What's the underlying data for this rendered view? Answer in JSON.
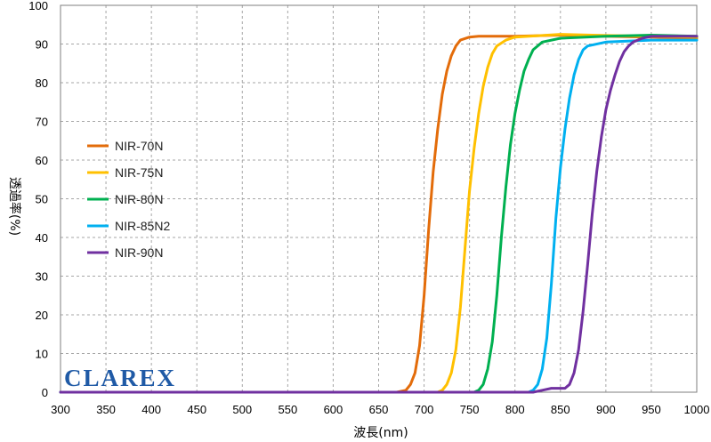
{
  "brand": {
    "logo_text": "CLAREX",
    "logo_color": "#1f5aa6"
  },
  "chart_data": {
    "type": "line",
    "title": "",
    "xlabel": "波長(nm)",
    "ylabel": "透過率(%)",
    "xlim": [
      300,
      1000
    ],
    "ylim": [
      0,
      100
    ],
    "x_ticks": [
      300,
      350,
      400,
      450,
      500,
      550,
      600,
      650,
      700,
      750,
      800,
      850,
      900,
      950,
      1000
    ],
    "y_ticks": [
      0,
      10,
      20,
      30,
      40,
      50,
      60,
      70,
      80,
      90,
      100
    ],
    "grid": true,
    "legend_position": "left-middle",
    "series": [
      {
        "name": "NIR-70N",
        "color": "#e36c0a",
        "points": [
          [
            300,
            0
          ],
          [
            670,
            0
          ],
          [
            680,
            0.5
          ],
          [
            685,
            2
          ],
          [
            690,
            5
          ],
          [
            695,
            12
          ],
          [
            700,
            25
          ],
          [
            705,
            42
          ],
          [
            710,
            57
          ],
          [
            715,
            68
          ],
          [
            720,
            77
          ],
          [
            725,
            83
          ],
          [
            730,
            87
          ],
          [
            735,
            89.5
          ],
          [
            740,
            91
          ],
          [
            750,
            91.8
          ],
          [
            760,
            92
          ],
          [
            800,
            92
          ],
          [
            850,
            92.3
          ],
          [
            900,
            92
          ],
          [
            950,
            91.8
          ],
          [
            1000,
            91.5
          ]
        ]
      },
      {
        "name": "NIR-75N",
        "color": "#ffc000",
        "points": [
          [
            300,
            0
          ],
          [
            715,
            0
          ],
          [
            720,
            0.5
          ],
          [
            725,
            2
          ],
          [
            730,
            5
          ],
          [
            735,
            11
          ],
          [
            740,
            22
          ],
          [
            745,
            37
          ],
          [
            750,
            52
          ],
          [
            755,
            63
          ],
          [
            760,
            72
          ],
          [
            765,
            79
          ],
          [
            770,
            84
          ],
          [
            775,
            87.5
          ],
          [
            780,
            89.5
          ],
          [
            790,
            91
          ],
          [
            800,
            91.8
          ],
          [
            850,
            92.5
          ],
          [
            900,
            92.2
          ],
          [
            950,
            92
          ],
          [
            1000,
            91.8
          ]
        ]
      },
      {
        "name": "NIR-80N",
        "color": "#00b050",
        "points": [
          [
            300,
            0
          ],
          [
            755,
            0
          ],
          [
            760,
            0.5
          ],
          [
            765,
            2
          ],
          [
            770,
            6
          ],
          [
            775,
            13
          ],
          [
            780,
            25
          ],
          [
            785,
            40
          ],
          [
            790,
            53
          ],
          [
            795,
            64
          ],
          [
            800,
            72
          ],
          [
            805,
            78
          ],
          [
            810,
            83
          ],
          [
            815,
            86
          ],
          [
            820,
            88.5
          ],
          [
            830,
            90.5
          ],
          [
            850,
            91.5
          ],
          [
            900,
            92
          ],
          [
            950,
            92.3
          ],
          [
            1000,
            92
          ]
        ]
      },
      {
        "name": "NIR-85N2",
        "color": "#00b0f0",
        "points": [
          [
            300,
            0
          ],
          [
            815,
            0
          ],
          [
            820,
            0.5
          ],
          [
            825,
            2
          ],
          [
            830,
            6
          ],
          [
            835,
            14
          ],
          [
            840,
            28
          ],
          [
            845,
            45
          ],
          [
            850,
            58
          ],
          [
            855,
            68
          ],
          [
            860,
            76
          ],
          [
            865,
            82
          ],
          [
            870,
            86
          ],
          [
            875,
            88.5
          ],
          [
            880,
            89.5
          ],
          [
            900,
            90.5
          ],
          [
            950,
            91
          ],
          [
            1000,
            91
          ]
        ]
      },
      {
        "name": "NIR-90N",
        "color": "#7030a0",
        "points": [
          [
            300,
            0
          ],
          [
            820,
            0
          ],
          [
            830,
            0.5
          ],
          [
            840,
            1
          ],
          [
            855,
            1
          ],
          [
            860,
            2
          ],
          [
            865,
            5
          ],
          [
            870,
            11
          ],
          [
            875,
            21
          ],
          [
            880,
            33
          ],
          [
            885,
            46
          ],
          [
            890,
            57
          ],
          [
            895,
            66
          ],
          [
            900,
            73
          ],
          [
            905,
            78
          ],
          [
            910,
            82
          ],
          [
            915,
            85.5
          ],
          [
            920,
            88
          ],
          [
            925,
            89.5
          ],
          [
            930,
            90.5
          ],
          [
            940,
            91.5
          ],
          [
            950,
            92
          ],
          [
            1000,
            92
          ]
        ]
      }
    ]
  }
}
